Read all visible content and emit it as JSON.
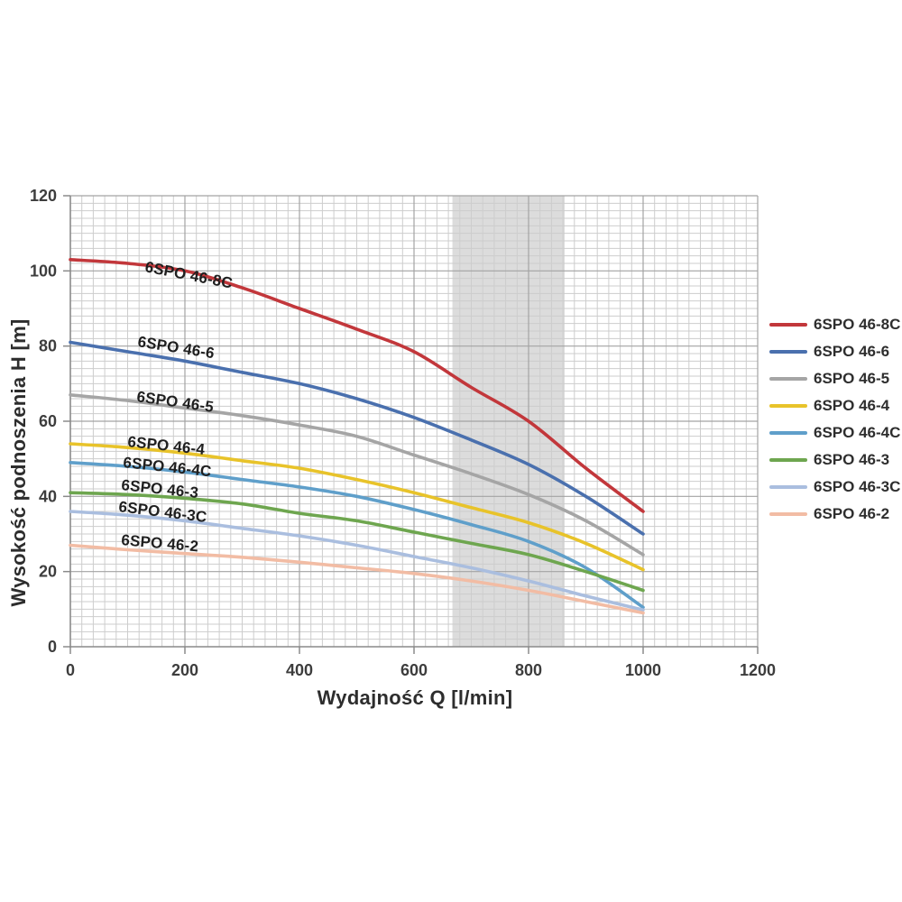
{
  "window": {
    "background": "#ffffff"
  },
  "chart_data": {
    "type": "line",
    "title": "",
    "xlabel": "Wydajność Q [l/min]",
    "ylabel": "Wysokość podnoszenia H [m]",
    "xlim": [
      0,
      1200
    ],
    "ylim": [
      0,
      120
    ],
    "x_ticks": [
      0,
      200,
      400,
      600,
      800,
      1000,
      1200
    ],
    "y_ticks": [
      0,
      20,
      40,
      60,
      80,
      100,
      120
    ],
    "x_minor_step": 20,
    "y_minor_step": 2,
    "grid": "major+minor",
    "legend_position": "right-outside",
    "highlight_band": {
      "x_from": 667,
      "x_to": 863,
      "color": "#dcdcdc"
    },
    "x": [
      0,
      100,
      200,
      300,
      400,
      500,
      600,
      700,
      800,
      900,
      1000
    ],
    "series": [
      {
        "name": "6SPO 46-8C",
        "color": "#c2373b",
        "values": [
          103,
          102,
          100,
          95.5,
          90,
          84.5,
          78.5,
          69,
          60,
          47.5,
          36
        ]
      },
      {
        "name": "6SPO 46-6",
        "color": "#4a70ae",
        "values": [
          81,
          78.5,
          76,
          73,
          70,
          66,
          61,
          55,
          48.5,
          40,
          30
        ]
      },
      {
        "name": "6SPO 46-5",
        "color": "#a5a5a5",
        "values": [
          67,
          65.5,
          63.5,
          61.5,
          59,
          56,
          51,
          46,
          40.5,
          33.5,
          24.5
        ]
      },
      {
        "name": "6SPO 46-4",
        "color": "#e8c32a",
        "values": [
          54,
          53,
          51.5,
          49.5,
          47.5,
          44.5,
          41,
          37,
          33,
          27.5,
          20.5
        ]
      },
      {
        "name": "6SPO 46-4C",
        "color": "#5f9fca",
        "values": [
          49,
          48,
          46.5,
          44.5,
          42.5,
          40,
          36.5,
          32.5,
          28,
          21,
          10.5
        ]
      },
      {
        "name": "6SPO 46-3",
        "color": "#6ea64f",
        "values": [
          41,
          40.5,
          39.5,
          38,
          35.5,
          33.5,
          30.5,
          27.5,
          24.5,
          20,
          15
        ]
      },
      {
        "name": "6SPO 46-3C",
        "color": "#aabedf",
        "values": [
          36,
          35,
          33.5,
          31.5,
          29.5,
          27,
          24,
          21,
          17.5,
          13.5,
          9.8
        ]
      },
      {
        "name": "6SPO 46-2",
        "color": "#f2bca4",
        "values": [
          27,
          25.8,
          24.8,
          23.8,
          22.5,
          21,
          19.5,
          17.5,
          15,
          12,
          9
        ]
      }
    ]
  }
}
